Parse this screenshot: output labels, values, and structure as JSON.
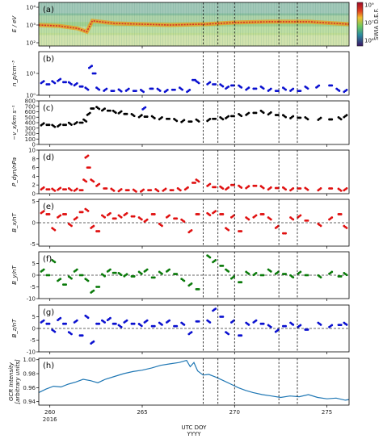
{
  "figure": {
    "xlabel": "UTC DOY",
    "xsublabel": "YYYY",
    "year_label": "2016",
    "xlim": [
      259.4,
      276.2
    ],
    "xticks": [
      260,
      265,
      270,
      275
    ],
    "event_lines": [
      268.3,
      269.1,
      270.0,
      272.4,
      273.4
    ],
    "colorbar": {
      "label": "SWIA D.E.F.",
      "ticks": [
        "10⁹",
        "10⁷",
        "10⁶"
      ],
      "colors": [
        "#3b1466",
        "#315a9d",
        "#1e9a8a",
        "#5cc862",
        "#f0e23a",
        "#f0a020",
        "#d73027",
        "#a00a28"
      ]
    }
  },
  "chart_data": [
    {
      "panel": "a",
      "label": "(a)",
      "type": "heatmap",
      "ylabel": "E / eV",
      "yticks": [
        "10⁴",
        "10³",
        "10²"
      ],
      "ridge_logE": [
        [
          259.4,
          2.95
        ],
        [
          260.5,
          2.9
        ],
        [
          261.5,
          2.75
        ],
        [
          262.0,
          2.55
        ],
        [
          262.3,
          3.2
        ],
        [
          263.5,
          3.05
        ],
        [
          265.0,
          3.0
        ],
        [
          266.5,
          2.95
        ],
        [
          268.2,
          3.0
        ],
        [
          268.4,
          3.0
        ],
        [
          270.0,
          3.1
        ],
        [
          272.0,
          3.15
        ],
        [
          274.0,
          3.15
        ],
        [
          276.2,
          3.0
        ]
      ]
    },
    {
      "panel": "b",
      "label": "(b)",
      "type": "scatter",
      "color": "#0a10d0",
      "ylabel": "n_p/cm⁻³",
      "ylim_log": [
        0,
        2
      ],
      "yticks": [
        "10¹",
        "10⁰"
      ],
      "x": [
        259.6,
        259.9,
        260.2,
        260.5,
        260.8,
        261.1,
        261.4,
        261.7,
        262.0,
        262.2,
        262.4,
        262.6,
        263.0,
        263.4,
        263.8,
        264.2,
        264.6,
        265.0,
        265.1,
        265.5,
        265.9,
        266.3,
        266.7,
        267.1,
        267.5,
        267.8,
        268.0,
        268.6,
        268.9,
        269.3,
        269.6,
        269.9,
        270.3,
        270.7,
        271.1,
        271.5,
        271.9,
        272.3,
        272.7,
        273.1,
        273.5,
        273.9,
        274.5,
        275.2,
        275.6,
        276.0
      ],
      "y": [
        0.6,
        0.5,
        0.6,
        0.7,
        0.6,
        0.55,
        0.5,
        0.4,
        0.3,
        1.3,
        1.0,
        0.3,
        0.25,
        0.2,
        0.22,
        0.25,
        0.2,
        0.2,
        -0.6,
        0.3,
        0.25,
        0.2,
        0.25,
        0.3,
        0.2,
        0.7,
        0.6,
        0.55,
        0.5,
        0.45,
        0.35,
        0.45,
        0.4,
        0.3,
        0.3,
        0.35,
        0.25,
        0.2,
        0.3,
        0.25,
        0.2,
        0.35,
        0.4,
        0.45,
        0.25,
        0.2
      ]
    },
    {
      "panel": "c",
      "label": "(c)",
      "type": "scatter",
      "color": "#000000",
      "ylabel": "−v_x/km s⁻¹",
      "ylim": [
        0,
        800
      ],
      "yticks": [
        0,
        100,
        200,
        300,
        400,
        500,
        600,
        700,
        800
      ],
      "x": [
        259.6,
        259.9,
        260.2,
        260.5,
        260.8,
        261.1,
        261.4,
        261.7,
        261.9,
        262.1,
        262.3,
        262.6,
        262.9,
        263.2,
        263.5,
        263.8,
        264.1,
        264.5,
        264.9,
        265.2,
        265.6,
        266.0,
        266.4,
        266.8,
        267.2,
        267.6,
        268.0,
        268.6,
        268.9,
        269.3,
        269.6,
        269.9,
        270.3,
        270.7,
        271.1,
        271.5,
        271.9,
        272.3,
        272.7,
        273.1,
        273.5,
        273.9,
        274.6,
        275.2,
        275.7,
        276.0
      ],
      "y": [
        370,
        360,
        340,
        350,
        360,
        380,
        390,
        400,
        440,
        560,
        660,
        670,
        640,
        620,
        600,
        590,
        560,
        540,
        520,
        510,
        500,
        480,
        470,
        450,
        430,
        420,
        440,
        450,
        470,
        480,
        500,
        520,
        540,
        560,
        580,
        600,
        570,
        540,
        520,
        500,
        490,
        480,
        470,
        460,
        480,
        520
      ]
    },
    {
      "panel": "d",
      "label": "(d)",
      "type": "scatter",
      "color": "#e01010",
      "ylabel": "P_dyn/nPa",
      "ylim": [
        0,
        10
      ],
      "yticks": [
        0,
        2,
        4,
        6,
        8,
        10
      ],
      "x": [
        259.6,
        259.9,
        260.2,
        260.5,
        260.8,
        261.1,
        261.4,
        261.7,
        261.9,
        262.0,
        262.1,
        262.3,
        262.6,
        263.0,
        263.4,
        263.8,
        264.2,
        264.6,
        265.0,
        265.4,
        265.8,
        266.2,
        266.6,
        267.0,
        267.4,
        267.8,
        268.0,
        268.6,
        268.9,
        269.3,
        269.6,
        269.9,
        270.3,
        270.7,
        271.1,
        271.5,
        271.9,
        272.3,
        272.7,
        273.1,
        273.5,
        273.9,
        274.6,
        275.2,
        275.7,
        276.0
      ],
      "y": [
        1.2,
        1.0,
        0.9,
        1.1,
        1.0,
        1.0,
        0.9,
        0.8,
        3.0,
        8.5,
        6.0,
        3.0,
        2.0,
        1.2,
        0.9,
        0.8,
        0.8,
        0.7,
        0.7,
        0.8,
        0.8,
        0.9,
        0.8,
        1.0,
        1.2,
        2.5,
        3.0,
        2.0,
        1.5,
        1.4,
        1.2,
        2.0,
        1.6,
        1.5,
        1.8,
        1.5,
        1.2,
        1.3,
        1.2,
        1.0,
        1.2,
        1.1,
        1.0,
        1.2,
        0.9,
        1.0
      ]
    },
    {
      "panel": "e",
      "label": "(e)",
      "type": "scatter",
      "color": "#e01010",
      "ylabel": "B_x/nT",
      "ylim": [
        -5.5,
        5.5
      ],
      "yticks": [
        -5,
        0,
        5
      ],
      "x": [
        259.6,
        259.9,
        260.2,
        260.5,
        260.8,
        261.1,
        261.4,
        261.7,
        262.0,
        262.3,
        262.6,
        262.9,
        263.2,
        263.5,
        263.8,
        264.1,
        264.5,
        264.9,
        265.2,
        265.6,
        266.0,
        266.4,
        266.8,
        267.2,
        267.6,
        268.0,
        268.6,
        268.9,
        269.3,
        269.6,
        269.9,
        270.3,
        270.7,
        271.1,
        271.5,
        271.9,
        272.3,
        272.7,
        273.1,
        273.5,
        273.9,
        274.6,
        275.2,
        275.7,
        276.0
      ],
      "y": [
        2.5,
        2.0,
        -1.5,
        1.5,
        2.0,
        -0.5,
        1.0,
        2.5,
        3.0,
        -1.0,
        -2.0,
        1.5,
        2.0,
        1.0,
        1.5,
        2.0,
        1.5,
        1.0,
        0.5,
        2.0,
        -0.5,
        1.5,
        1.0,
        0.5,
        -2.0,
        2.0,
        2.0,
        2.5,
        2.0,
        -1.5,
        1.5,
        -2.0,
        1.0,
        1.5,
        2.0,
        1.0,
        -1.0,
        -2.5,
        1.0,
        1.5,
        0.5,
        -0.5,
        1.0,
        2.0,
        -1.0
      ]
    },
    {
      "panel": "f",
      "label": "(f)",
      "type": "scatter",
      "color": "#0a7a0a",
      "ylabel": "B_y/nT",
      "ylim": [
        -10,
        10
      ],
      "yticks": [
        -10,
        -5,
        0,
        5
      ],
      "x": [
        259.6,
        259.9,
        260.2,
        260.5,
        260.8,
        261.1,
        261.4,
        261.7,
        262.0,
        262.3,
        262.6,
        262.9,
        263.2,
        263.5,
        263.8,
        264.1,
        264.5,
        264.9,
        265.2,
        265.6,
        266.0,
        266.4,
        266.8,
        267.2,
        267.6,
        268.0,
        268.6,
        268.9,
        269.3,
        269.6,
        269.9,
        270.3,
        270.7,
        271.1,
        271.5,
        271.9,
        272.3,
        272.7,
        273.1,
        273.5,
        273.9,
        274.6,
        275.2,
        275.7,
        276.0
      ],
      "y": [
        2.0,
        0.0,
        6.0,
        -2.0,
        -4.0,
        -1.0,
        2.0,
        0.0,
        -2.0,
        -7.0,
        -5.0,
        0.0,
        2.0,
        1.0,
        0.5,
        0.0,
        -0.5,
        1.0,
        2.0,
        -1.0,
        1.0,
        2.0,
        0.5,
        -2.0,
        -4.0,
        -6.0,
        8.0,
        6.0,
        4.0,
        2.0,
        -1.0,
        -3.0,
        1.0,
        0.5,
        0.0,
        2.0,
        1.0,
        0.5,
        -0.5,
        1.0,
        0.0,
        -0.5,
        1.0,
        -0.5,
        0.5
      ]
    },
    {
      "panel": "g",
      "label": "(g)",
      "type": "scatter",
      "color": "#0a10d0",
      "ylabel": "B_z/nT",
      "ylim": [
        -10,
        10
      ],
      "yticks": [
        -10,
        -5,
        0,
        5
      ],
      "x": [
        259.6,
        259.9,
        260.2,
        260.5,
        260.8,
        261.1,
        261.4,
        261.7,
        262.0,
        262.3,
        262.6,
        262.9,
        263.2,
        263.5,
        263.8,
        264.1,
        264.5,
        264.9,
        265.2,
        265.6,
        266.0,
        266.4,
        266.8,
        267.2,
        267.6,
        268.0,
        268.6,
        268.9,
        269.3,
        269.6,
        269.9,
        270.3,
        270.7,
        271.1,
        271.5,
        271.9,
        272.3,
        272.7,
        273.1,
        273.5,
        273.9,
        274.6,
        275.2,
        275.7,
        276.0
      ],
      "y": [
        3.0,
        2.0,
        -1.0,
        4.0,
        2.0,
        -2.0,
        3.0,
        -3.0,
        5.0,
        -6.0,
        2.0,
        3.0,
        4.0,
        2.0,
        1.0,
        3.0,
        2.0,
        1.5,
        3.0,
        1.0,
        2.0,
        3.0,
        1.0,
        2.0,
        -2.0,
        3.0,
        3.0,
        8.0,
        5.0,
        -2.0,
        3.0,
        -3.0,
        2.0,
        3.0,
        2.0,
        1.0,
        -1.0,
        1.0,
        2.0,
        1.0,
        -0.5,
        2.0,
        1.0,
        1.5,
        2.0
      ]
    },
    {
      "panel": "h",
      "label": "(h)",
      "type": "line",
      "color": "#1f77b4",
      "ylabel": "GCR Intensity\n[arbitrary units]",
      "ylim": [
        0.935,
        1.002
      ],
      "yticks": [
        0.94,
        0.96,
        0.98,
        1.0
      ],
      "ytick_labels": [
        "0.94",
        "0.96",
        "0.98",
        "1.00"
      ],
      "x": [
        259.4,
        259.8,
        260.2,
        260.6,
        261.0,
        261.4,
        261.8,
        262.2,
        262.6,
        263.0,
        263.5,
        264.0,
        264.5,
        265.0,
        265.5,
        266.0,
        266.5,
        267.0,
        267.4,
        267.6,
        267.8,
        268.0,
        268.3,
        268.6,
        269.0,
        269.4,
        269.8,
        270.2,
        270.6,
        271.0,
        271.5,
        272.0,
        272.5,
        273.0,
        273.5,
        274.0,
        274.5,
        275.0,
        275.5,
        276.0,
        276.2
      ],
      "y": [
        0.953,
        0.958,
        0.962,
        0.961,
        0.965,
        0.968,
        0.972,
        0.97,
        0.967,
        0.972,
        0.976,
        0.98,
        0.983,
        0.985,
        0.988,
        0.992,
        0.994,
        0.996,
        0.999,
        0.99,
        0.996,
        0.984,
        0.978,
        0.979,
        0.975,
        0.97,
        0.965,
        0.96,
        0.956,
        0.953,
        0.95,
        0.948,
        0.946,
        0.948,
        0.947,
        0.95,
        0.946,
        0.944,
        0.945,
        0.942,
        0.943
      ]
    }
  ]
}
